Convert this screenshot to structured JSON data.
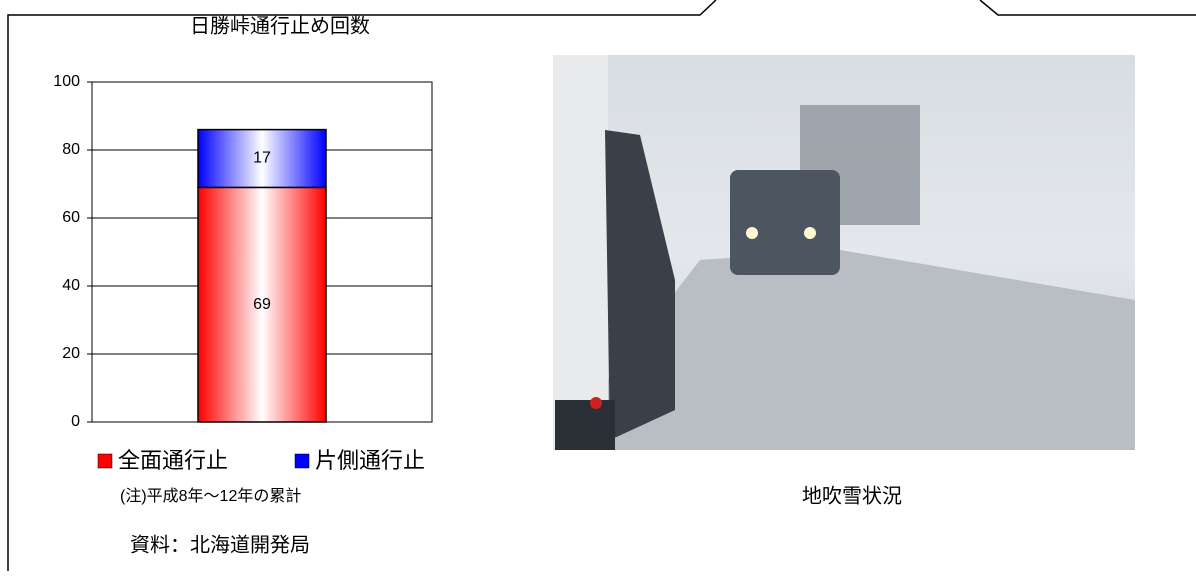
{
  "chart_data": {
    "type": "bar",
    "stacked": true,
    "title": "日勝峠通行止め回数",
    "categories": [
      null
    ],
    "series": [
      {
        "name": "全面通行止",
        "color": "#ff0000",
        "values": [
          69
        ]
      },
      {
        "name": "片側通行止",
        "color": "#0000ff",
        "values": [
          17
        ]
      }
    ],
    "ylim": [
      0,
      100
    ],
    "yticks": [
      0,
      20,
      40,
      60,
      80,
      100
    ],
    "grid": true,
    "note": "(注)平成8年～12年の累計",
    "source": "資料：北海道開発局"
  },
  "photo": {
    "caption": "地吹雪状況"
  }
}
